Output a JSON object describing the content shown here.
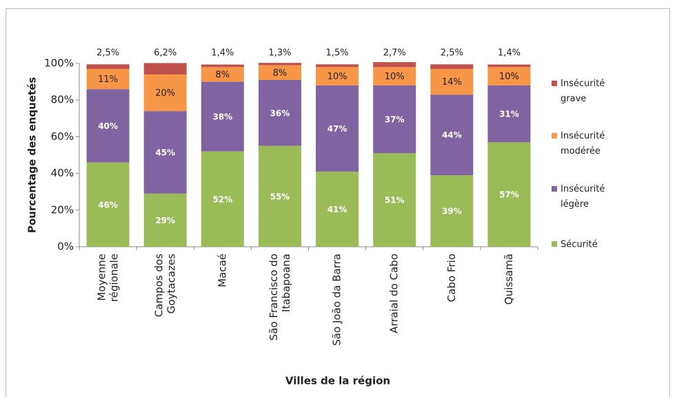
{
  "chart_data": {
    "type": "stacked_bar",
    "ylabel": "Pourcentage des enquetés",
    "xlabel": "Villes de la région",
    "categories": [
      "Moyenne\nrégionale",
      "Campos dos\nGoytacazes",
      "Macaé",
      "São Francisco do\nItabapoana",
      "São João da Barra",
      "Arraial do Cabo",
      "Cabo Frio",
      "Quissamã"
    ],
    "ylim": [
      0,
      100
    ],
    "yticks": [
      {
        "value": 0,
        "label": "0%"
      },
      {
        "value": 20,
        "label": "20%"
      },
      {
        "value": 40,
        "label": "40%"
      },
      {
        "value": 60,
        "label": "60%"
      },
      {
        "value": 80,
        "label": "80%"
      },
      {
        "value": 100,
        "label": "100%"
      }
    ],
    "legend": "right",
    "series": [
      {
        "name": "Sécurité",
        "color": "#9bbb59",
        "values": [
          46,
          29,
          52,
          55,
          41,
          51,
          39,
          57
        ],
        "value_labels": [
          "46%",
          "29%",
          "52%",
          "55%",
          "41%",
          "51%",
          "39%",
          "57%"
        ]
      },
      {
        "name": "Insécurité\nlégère",
        "color": "#8064a2",
        "values": [
          40,
          45,
          38,
          36,
          47,
          37,
          44,
          31
        ],
        "value_labels": [
          "40%",
          "45%",
          "38%",
          "36%",
          "47%",
          "37%",
          "44%",
          "31%"
        ]
      },
      {
        "name": "Insécurité\nmodérée",
        "color": "#f79646",
        "values": [
          11,
          20,
          8,
          8,
          10,
          10,
          14,
          10
        ],
        "value_labels": [
          "11%",
          "20%",
          "8%",
          "8%",
          "10%",
          "10%",
          "14%",
          "10%"
        ]
      },
      {
        "name": "Insécurité\ngrave",
        "color": "#c0504d",
        "values": [
          2.5,
          6.2,
          1.4,
          1.3,
          1.5,
          2.7,
          2.5,
          1.4
        ],
        "value_labels": [
          "2,5%",
          "6,2%",
          "1,4%",
          "1,3%",
          "1,5%",
          "2,7%",
          "2,5%",
          "1,4%"
        ]
      }
    ]
  }
}
